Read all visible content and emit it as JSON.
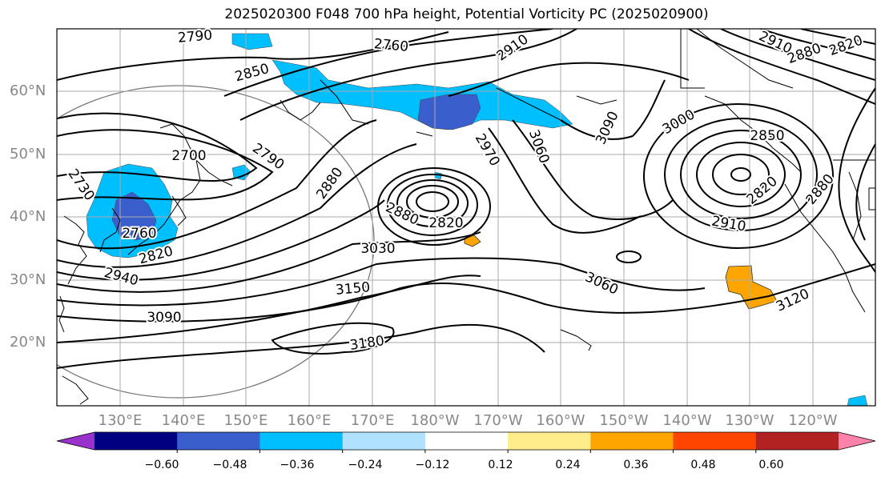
{
  "title": "2025020300 F048 700 hPa height, Potential Vorticity PC (2025020900)",
  "lat_labels": [
    "60°N",
    "50°N",
    "40°N",
    "30°N",
    "20°N"
  ],
  "lon_labels": [
    "130°E",
    "140°E",
    "150°E",
    "160°E",
    "170°E",
    "180°W",
    "170°W",
    "160°W",
    "150°W",
    "140°W",
    "130°W",
    "120°W"
  ],
  "colorbar": {
    "ticks": [
      "−0.60",
      "−0.48",
      "−0.36",
      "−0.24",
      "−0.12",
      "0.12",
      "0.24",
      "0.36",
      "0.48",
      "0.60"
    ],
    "colors": [
      "#9932cc",
      "#000080",
      "#3a5fcd",
      "#00bfff",
      "#b0e2ff",
      "#ffffff",
      "#ffec8b",
      "#ffa500",
      "#ff4500",
      "#b22222",
      "#ff82ab"
    ]
  },
  "contour_labels": [
    "2790",
    "2760",
    "2910",
    "2850",
    "2700",
    "2790",
    "2730",
    "2880",
    "2970",
    "3060",
    "3090",
    "3000",
    "2850",
    "2820",
    "2880",
    "2910",
    "2760",
    "2820",
    "2940",
    "3030",
    "2880",
    "2820",
    "3060",
    "3150",
    "3090",
    "3120",
    "3180",
    "2910",
    "2880",
    "2820"
  ]
}
